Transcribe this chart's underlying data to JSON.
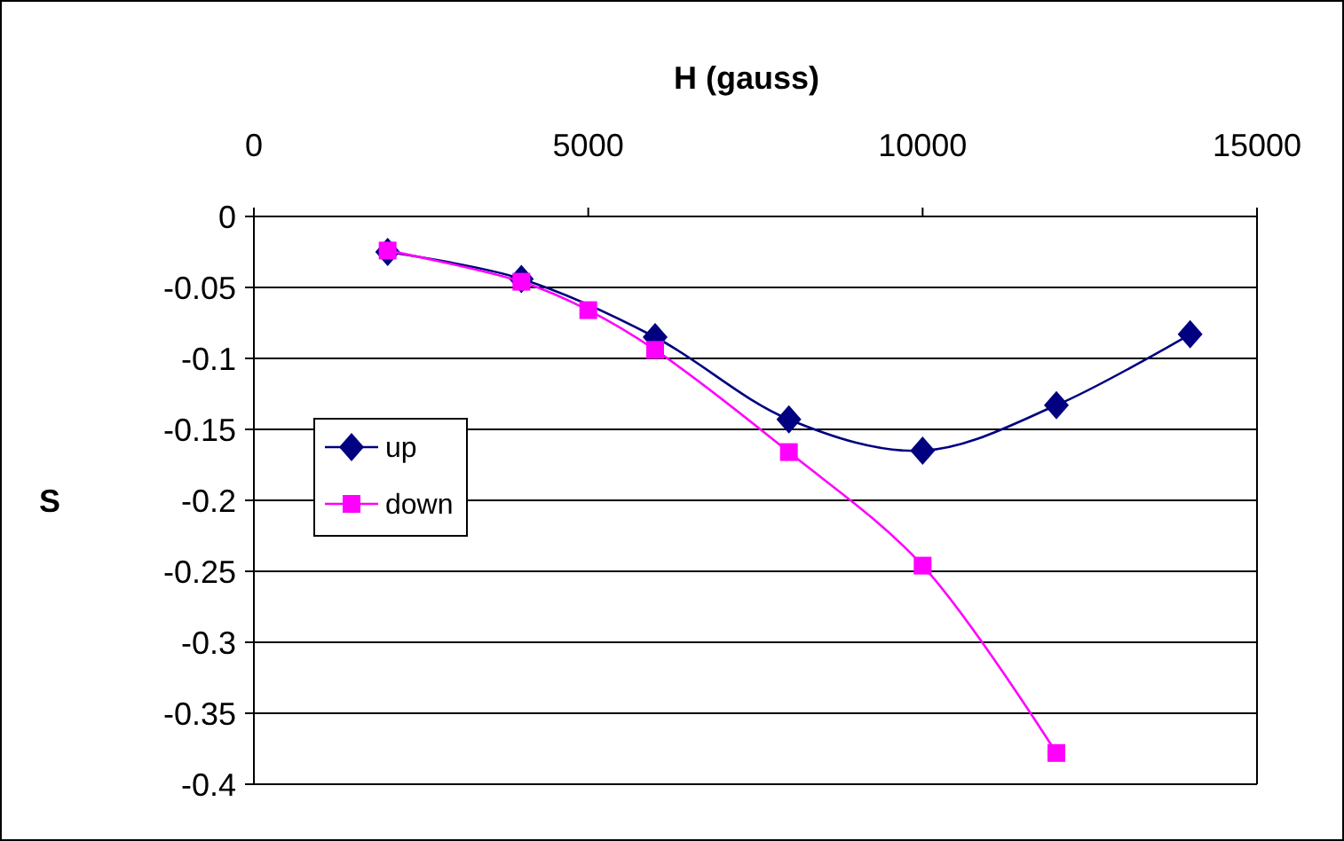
{
  "chart_data": {
    "type": "line",
    "xlabel": "H (gauss)",
    "ylabel": "S",
    "xlim": [
      0,
      15000
    ],
    "xticks": [
      0,
      5000,
      10000,
      15000
    ],
    "ylim": [
      -0.4,
      0
    ],
    "yticks": [
      -0.4,
      -0.35,
      -0.3,
      -0.25,
      -0.2,
      -0.15,
      -0.1,
      -0.05,
      0
    ],
    "grid": "y",
    "legend": "left",
    "series": [
      {
        "name": "up",
        "color": "#000080",
        "marker": "diamond",
        "x": [
          2000,
          4000,
          6000,
          8000,
          10000,
          12000,
          14000
        ],
        "values": [
          -0.025,
          -0.044,
          -0.085,
          -0.143,
          -0.165,
          -0.133,
          -0.083
        ]
      },
      {
        "name": "down",
        "color": "#ff00ff",
        "marker": "square",
        "x": [
          2000,
          4000,
          5000,
          6000,
          8000,
          10000,
          12000
        ],
        "values": [
          -0.024,
          -0.046,
          -0.066,
          -0.094,
          -0.166,
          -0.246,
          -0.378
        ]
      }
    ]
  }
}
